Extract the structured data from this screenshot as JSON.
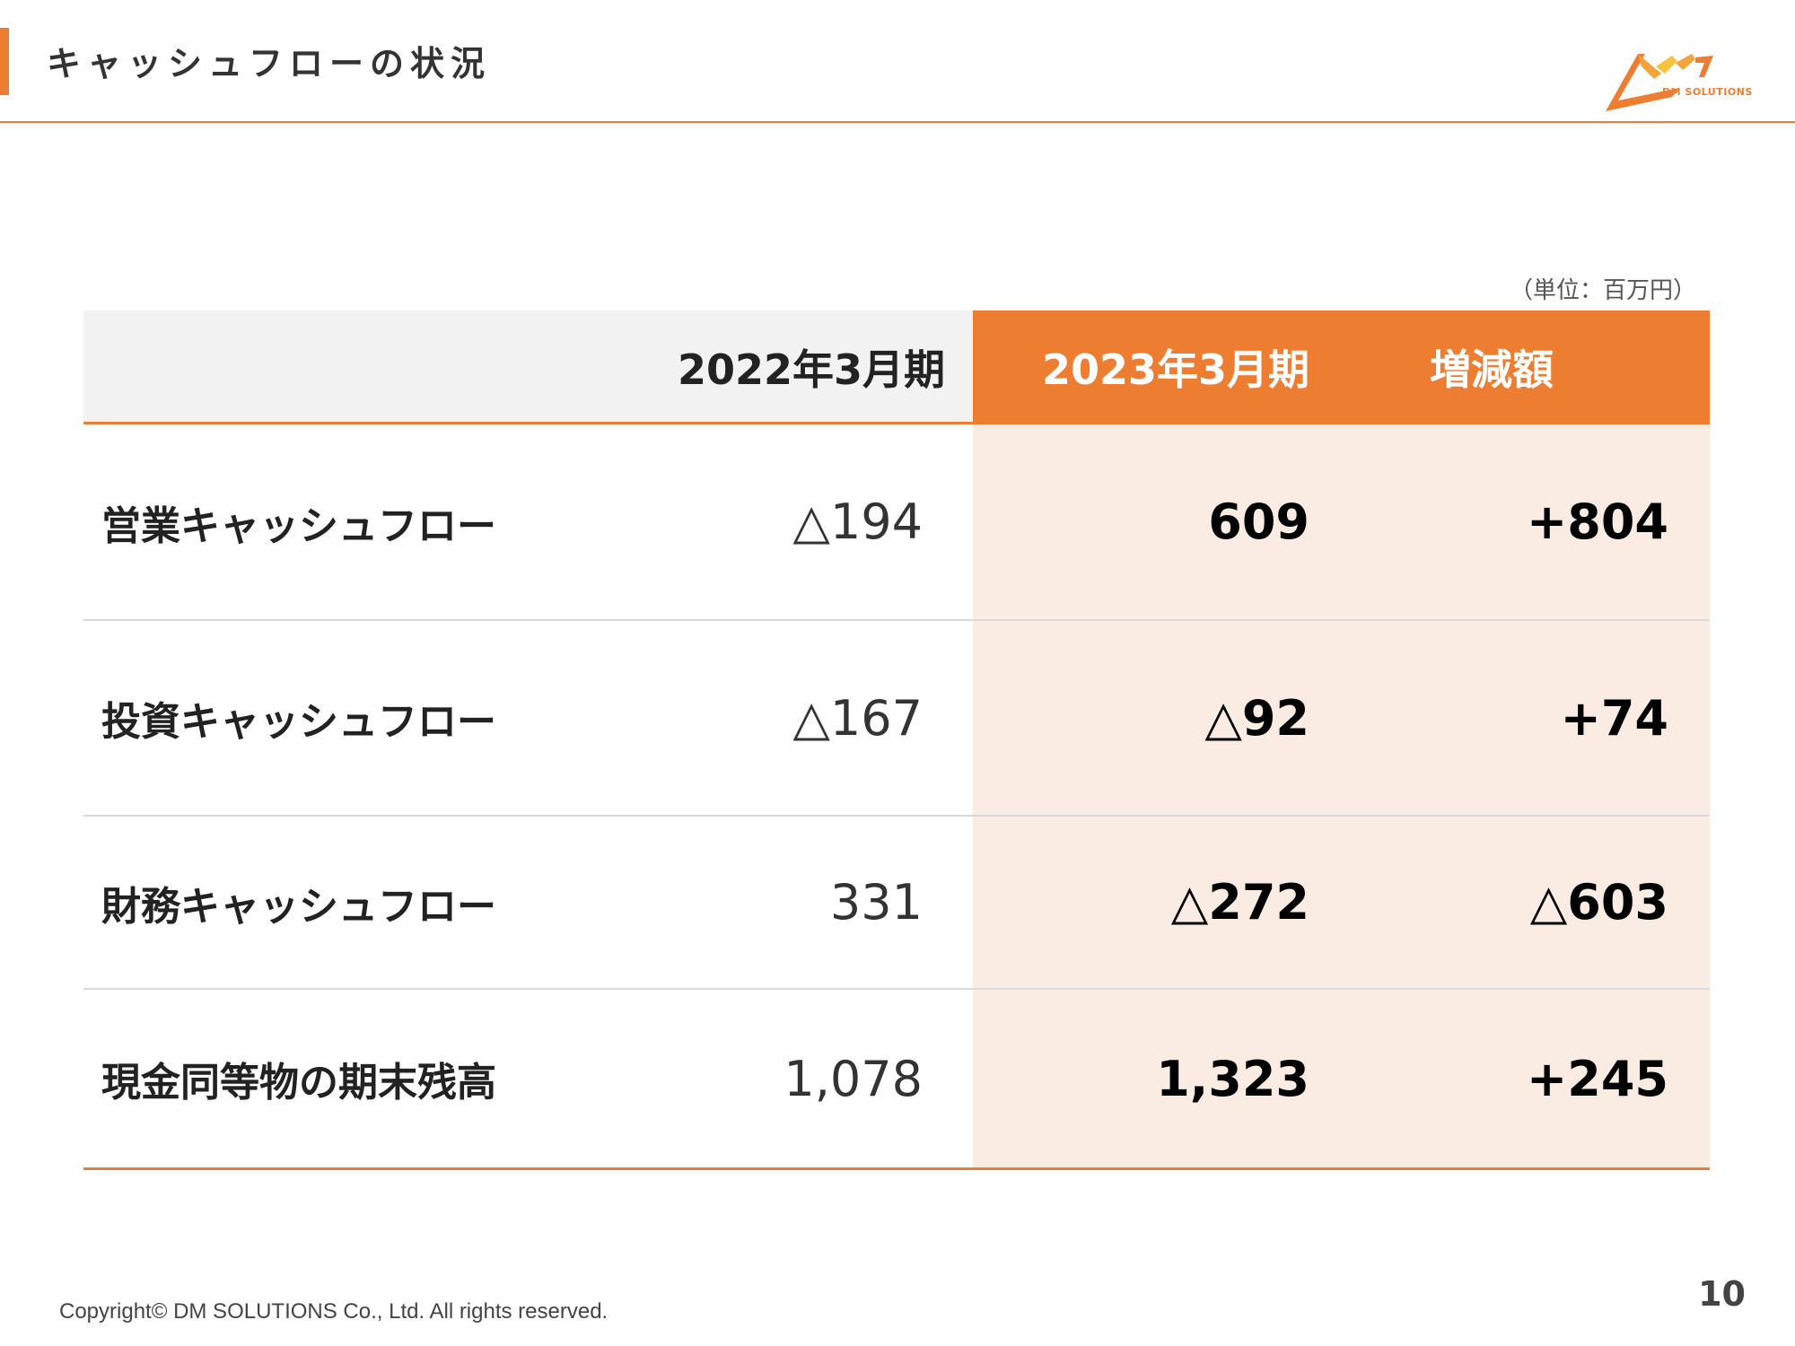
{
  "slide": {
    "title": "キャッシュフローの状況",
    "unit": "（単位：百万円）",
    "logo_text": "DM SOLUTIONS",
    "copyright": "Copyright© DM SOLUTIONS Co., Ltd. All rights reserved.",
    "page_number": "10"
  },
  "table": {
    "headers": [
      "",
      "2022年3月期",
      "2023年3月期",
      "増減額"
    ],
    "rows": [
      {
        "label": "営業キャッシュフロー",
        "fy2022": "△194",
        "fy2023": "609",
        "change": "+804"
      },
      {
        "label": "投資キャッシュフロー",
        "fy2022": "△167",
        "fy2023": "△92",
        "change": "+74"
      },
      {
        "label": "財務キャッシュフロー",
        "fy2022": "331",
        "fy2023": "△272",
        "change": "△603"
      },
      {
        "label": "現金同等物の期末残高",
        "fy2022": "1,078",
        "fy2023": "1,323",
        "change": "+245"
      }
    ]
  },
  "colors": {
    "accent": "#ED7D31",
    "highlight_column": "#FBECE3",
    "header_grey": "#F2F2F2"
  }
}
